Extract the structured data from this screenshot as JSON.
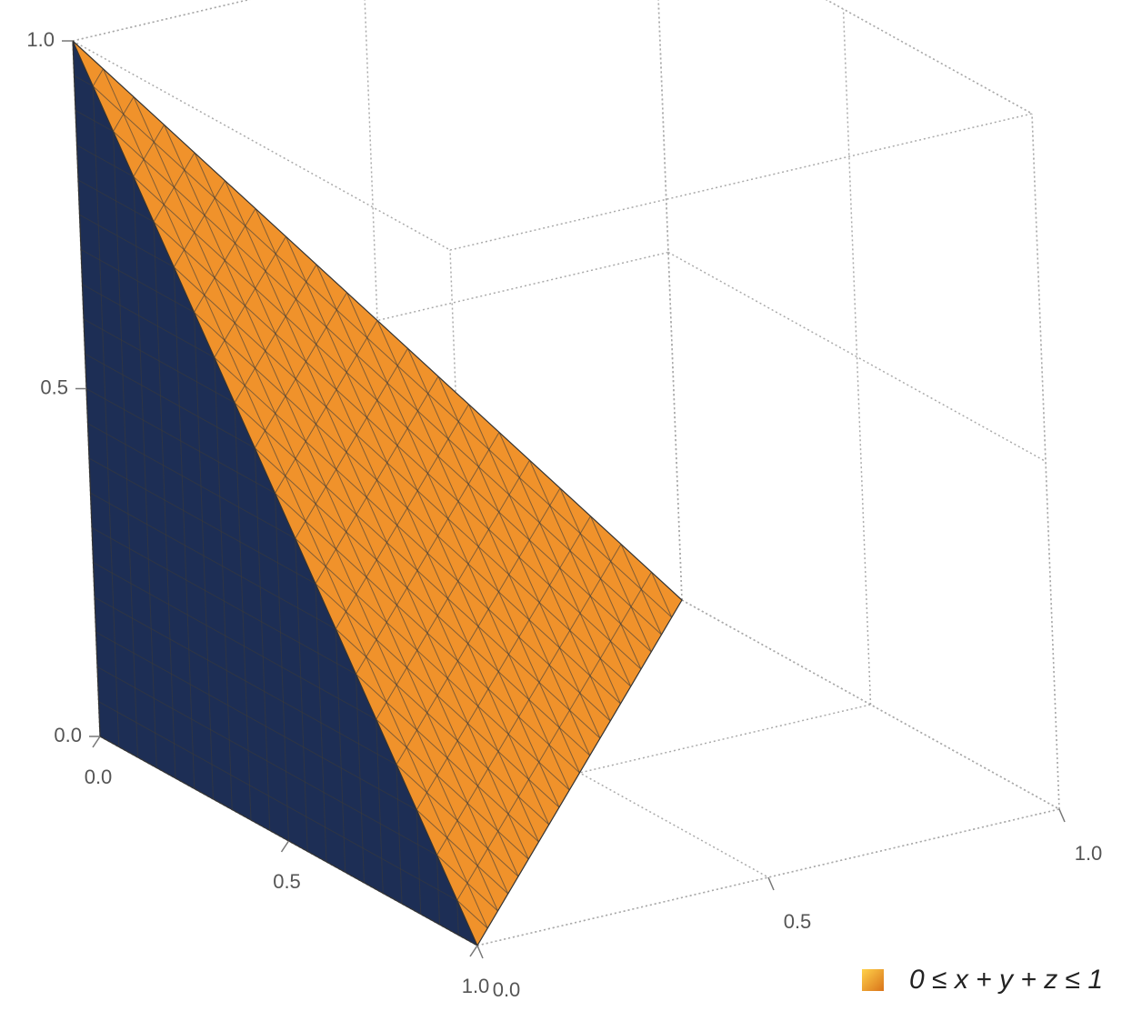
{
  "chart_data": {
    "type": "region3d",
    "legend": "0 ≤ x + y + z ≤ 1",
    "color": "#f0922b",
    "side_color": "#1d2e55",
    "xlim": [
      0,
      1
    ],
    "ylim": [
      0,
      1
    ],
    "zlim": [
      0,
      1
    ],
    "xticks": [
      {
        "value": 0,
        "label": "0.0"
      },
      {
        "value": 0.5,
        "label": "0.5"
      },
      {
        "value": 1,
        "label": "1.0"
      }
    ],
    "yticks": [
      {
        "value": 0,
        "label": "0.0"
      },
      {
        "value": 0.5,
        "label": "0.5"
      },
      {
        "value": 1,
        "label": "1.0"
      }
    ],
    "zticks": [
      {
        "value": 0,
        "label": "0.0"
      },
      {
        "value": 0.5,
        "label": "0.5"
      },
      {
        "value": 1,
        "label": "1.0"
      }
    ],
    "grid": true
  }
}
